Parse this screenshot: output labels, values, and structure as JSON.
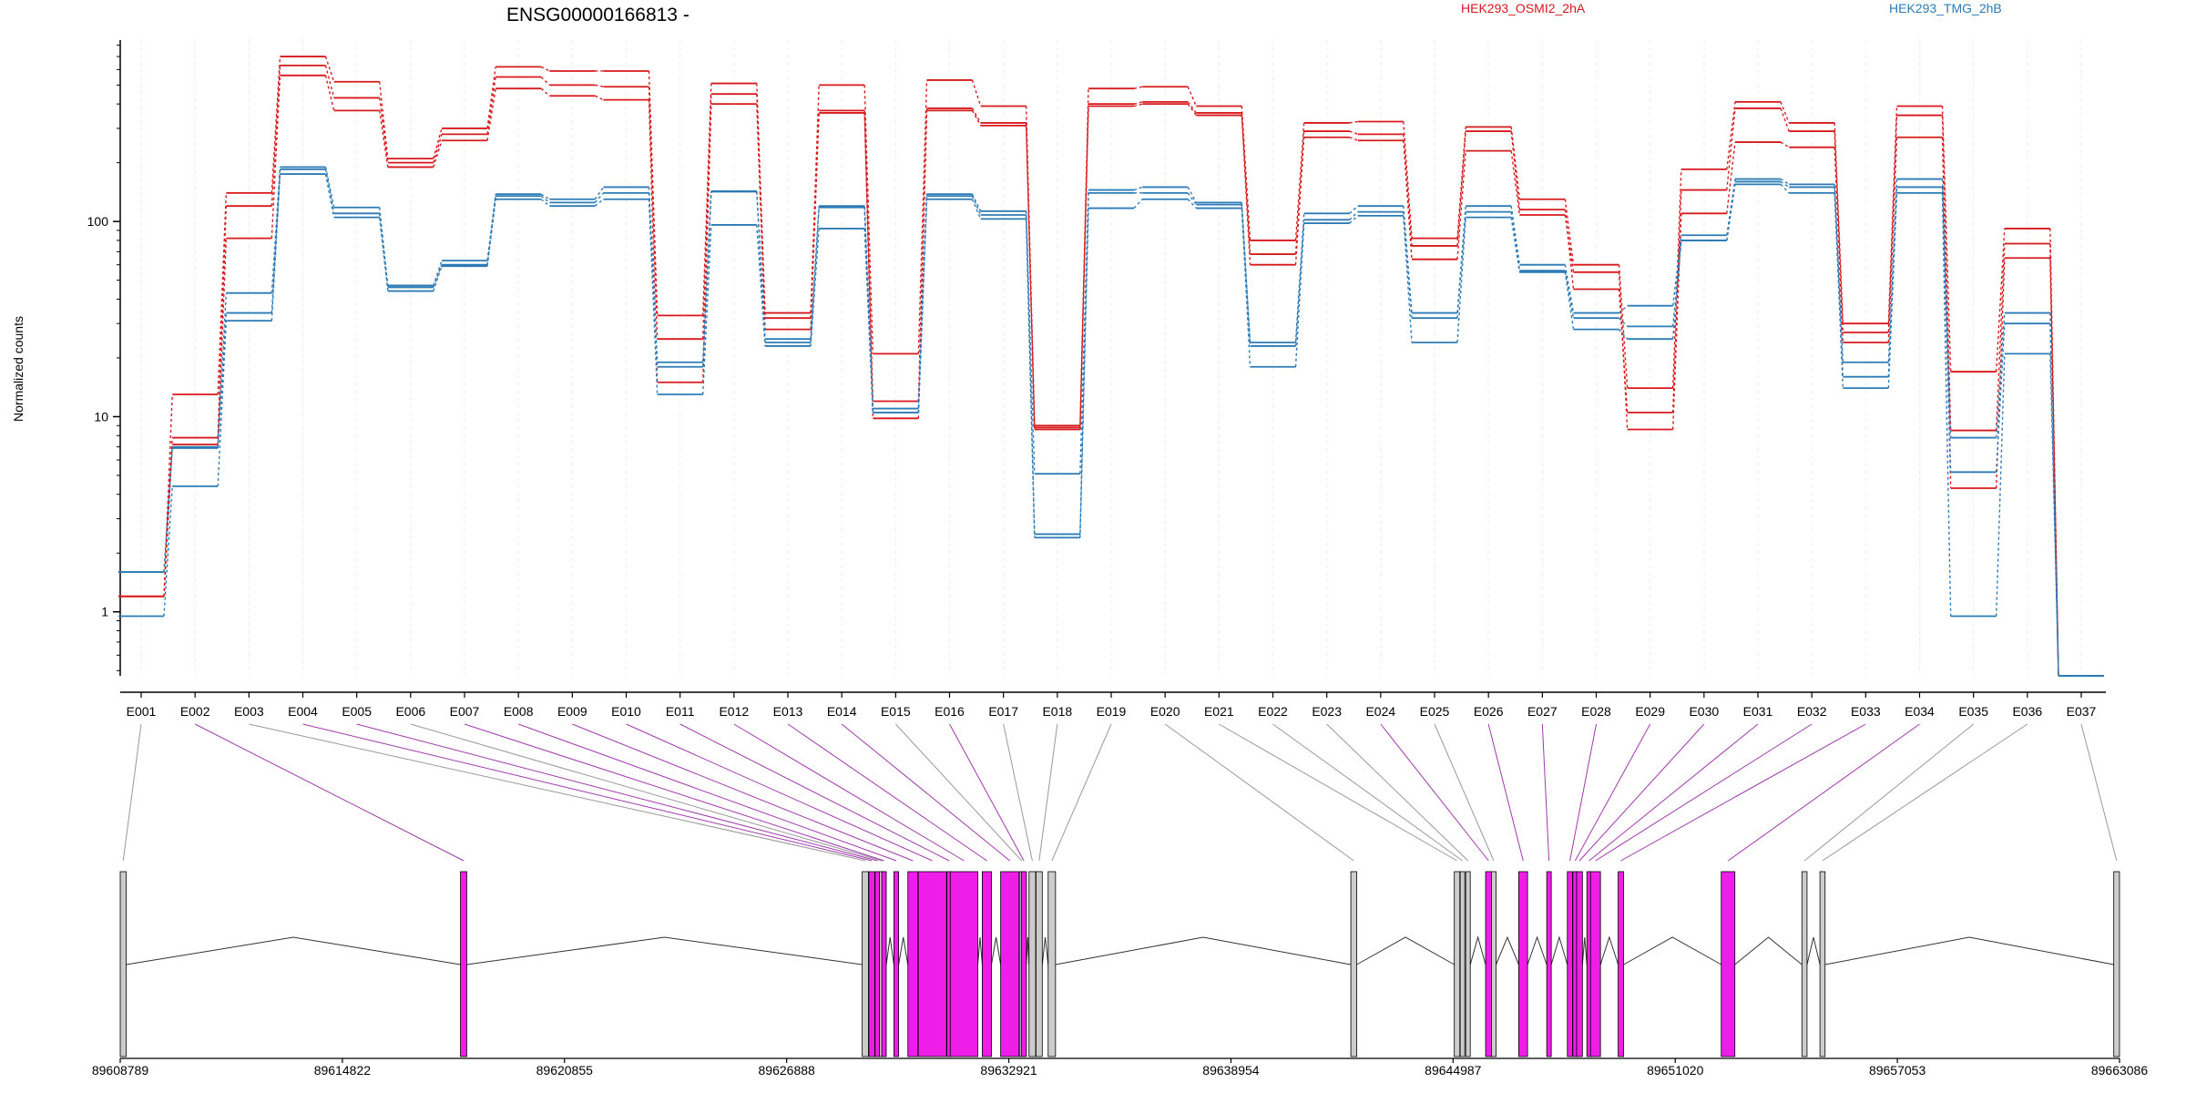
{
  "chart_data": {
    "type": "line",
    "title": "ENSG00000166813 -",
    "ylabel": "Normalized counts",
    "yscale": "log",
    "ylim": [
      0.47,
      850
    ],
    "yticks": [
      {
        "value": 1,
        "label": "1"
      },
      {
        "value": 10,
        "label": "10"
      },
      {
        "value": 100,
        "label": "100"
      }
    ],
    "categories": [
      "E001",
      "E002",
      "E003",
      "E004",
      "E005",
      "E006",
      "E007",
      "E008",
      "E009",
      "E010",
      "E011",
      "E012",
      "E013",
      "E014",
      "E015",
      "E016",
      "E017",
      "E018",
      "E019",
      "E020",
      "E021",
      "E022",
      "E023",
      "E024",
      "E025",
      "E026",
      "E027",
      "E028",
      "E029",
      "E030",
      "E031",
      "E032",
      "E033",
      "E034",
      "E035",
      "E036",
      "E037"
    ],
    "legend": [
      {
        "label": "HEK293_OSMI2_2hA",
        "color": "#d7191c"
      },
      {
        "label": "HEK293_TMG_2hB",
        "color": "#2c7bb6"
      }
    ],
    "series": [
      {
        "group": 0,
        "values": [
          1.2,
          13,
          140,
          700,
          520,
          210,
          300,
          620,
          590,
          590,
          33,
          510,
          34,
          500,
          21,
          530,
          390,
          9,
          480,
          490,
          390,
          80,
          320,
          325,
          82,
          305,
          130,
          60,
          14,
          185,
          410,
          320,
          30,
          390,
          17,
          92,
          0.47
        ]
      },
      {
        "group": 0,
        "values": [
          1.2,
          7.8,
          120,
          630,
          430,
          200,
          280,
          550,
          500,
          490,
          25,
          450,
          32,
          370,
          12,
          380,
          320,
          8.8,
          400,
          410,
          360,
          68,
          290,
          280,
          75,
          290,
          115,
          45,
          10.5,
          145,
          380,
          290,
          27,
          350,
          8.5,
          77,
          0.47
        ]
      },
      {
        "group": 0,
        "values": [
          1.2,
          7.2,
          82,
          560,
          370,
          190,
          260,
          480,
          440,
          420,
          15,
          400,
          28,
          360,
          9.8,
          370,
          310,
          8.6,
          390,
          400,
          350,
          60,
          270,
          260,
          64,
          230,
          108,
          55,
          8.6,
          110,
          255,
          240,
          24,
          270,
          4.3,
          65,
          0.47
        ]
      },
      {
        "group": 1,
        "values": [
          1.6,
          7.0,
          43,
          190,
          118,
          47,
          63,
          138,
          130,
          150,
          19,
          143,
          25,
          120,
          11,
          138,
          113,
          5.1,
          145,
          150,
          125,
          24,
          110,
          120,
          34,
          120,
          60,
          34,
          37,
          85,
          165,
          155,
          19,
          165,
          7.8,
          34,
          0.47
        ]
      },
      {
        "group": 1,
        "values": [
          1.6,
          6.9,
          34,
          185,
          110,
          46,
          60,
          135,
          125,
          140,
          18,
          142,
          24,
          118,
          10.5,
          135,
          108,
          2.5,
          140,
          140,
          122,
          23,
          102,
          112,
          32,
          112,
          56,
          32,
          29,
          80,
          160,
          150,
          16,
          150,
          5.2,
          30,
          0.47
        ]
      },
      {
        "group": 1,
        "values": [
          0.95,
          4.4,
          31,
          175,
          105,
          44,
          59,
          130,
          120,
          130,
          13,
          96,
          23,
          92,
          10.5,
          130,
          103,
          2.4,
          117,
          130,
          117,
          18,
          98,
          107,
          24,
          105,
          55,
          28,
          25,
          80,
          155,
          140,
          14,
          140,
          0.95,
          21,
          0.47
        ]
      }
    ],
    "gene_model": {
      "axis_ticks": [
        "89608789",
        "89614822",
        "89620855",
        "89626888",
        "89632921",
        "89638954",
        "89644987",
        "89651020",
        "89657053",
        "89663086"
      ],
      "axis_range": [
        89608789,
        89663086
      ],
      "exons": [
        {
          "id": "E001",
          "start": 89608789,
          "end": 89608950,
          "tested": false
        },
        {
          "id": "E002",
          "start": 89618030,
          "end": 89618200,
          "tested": true
        },
        {
          "id": "E003",
          "start": 89628940,
          "end": 89629110,
          "tested": false
        },
        {
          "id": "E004",
          "start": 89629120,
          "end": 89629280,
          "tested": true
        },
        {
          "id": "E005",
          "start": 89629290,
          "end": 89629400,
          "tested": true
        },
        {
          "id": "E006",
          "start": 89629410,
          "end": 89629460,
          "tested": false
        },
        {
          "id": "E007",
          "start": 89629470,
          "end": 89629590,
          "tested": true
        },
        {
          "id": "E008",
          "start": 89629800,
          "end": 89629930,
          "tested": true
        },
        {
          "id": "E009",
          "start": 89630180,
          "end": 89630450,
          "tested": true
        },
        {
          "id": "E010",
          "start": 89630460,
          "end": 89631230,
          "tested": true
        },
        {
          "id": "E011",
          "start": 89631240,
          "end": 89631320,
          "tested": true
        },
        {
          "id": "E012",
          "start": 89631330,
          "end": 89632080,
          "tested": true
        },
        {
          "id": "E013",
          "start": 89632200,
          "end": 89632450,
          "tested": true
        },
        {
          "id": "E014",
          "start": 89632700,
          "end": 89633200,
          "tested": true
        },
        {
          "id": "E015",
          "start": 89633210,
          "end": 89633250,
          "tested": false
        },
        {
          "id": "E016",
          "start": 89633260,
          "end": 89633400,
          "tested": true
        },
        {
          "id": "E017",
          "start": 89633470,
          "end": 89633650,
          "tested": false
        },
        {
          "id": "E018",
          "start": 89633660,
          "end": 89633830,
          "tested": false
        },
        {
          "id": "E019",
          "start": 89633990,
          "end": 89634190,
          "tested": false
        },
        {
          "id": "E020",
          "start": 89642210,
          "end": 89642370,
          "tested": false
        },
        {
          "id": "E021",
          "start": 89645020,
          "end": 89645170,
          "tested": false
        },
        {
          "id": "E022",
          "start": 89645180,
          "end": 89645230,
          "tested": false
        },
        {
          "id": "E023",
          "start": 89645330,
          "end": 89645440,
          "tested": false
        },
        {
          "id": "E024",
          "start": 89645870,
          "end": 89646030,
          "tested": true
        },
        {
          "id": "E025",
          "start": 89646030,
          "end": 89646050,
          "tested": false
        },
        {
          "id": "E026",
          "start": 89646770,
          "end": 89647010,
          "tested": true
        },
        {
          "id": "E027",
          "start": 89647530,
          "end": 89647650,
          "tested": true
        },
        {
          "id": "E028",
          "start": 89648090,
          "end": 89648230,
          "tested": true
        },
        {
          "id": "E029",
          "start": 89648240,
          "end": 89648330,
          "tested": true
        },
        {
          "id": "E030",
          "start": 89648340,
          "end": 89648500,
          "tested": true
        },
        {
          "id": "E031",
          "start": 89648620,
          "end": 89648710,
          "tested": true
        },
        {
          "id": "E032",
          "start": 89648720,
          "end": 89648990,
          "tested": true
        },
        {
          "id": "E033",
          "start": 89649470,
          "end": 89649620,
          "tested": true
        },
        {
          "id": "E034",
          "start": 89652270,
          "end": 89652640,
          "tested": true
        },
        {
          "id": "E035",
          "start": 89654460,
          "end": 89654600,
          "tested": false
        },
        {
          "id": "E036",
          "start": 89654950,
          "end": 89655090,
          "tested": false
        },
        {
          "id": "E037",
          "start": 89662930,
          "end": 89663086,
          "tested": false
        }
      ]
    }
  },
  "colors": {
    "osmi": "#d7191c",
    "tmg": "#2c7bb6",
    "tested_exon": "#ee1ee8",
    "untested_exon": "#cccccc",
    "tested_link": "#a03aab",
    "untested_link": "#999999",
    "axis": "#000000",
    "grid": "#eef0f6"
  }
}
